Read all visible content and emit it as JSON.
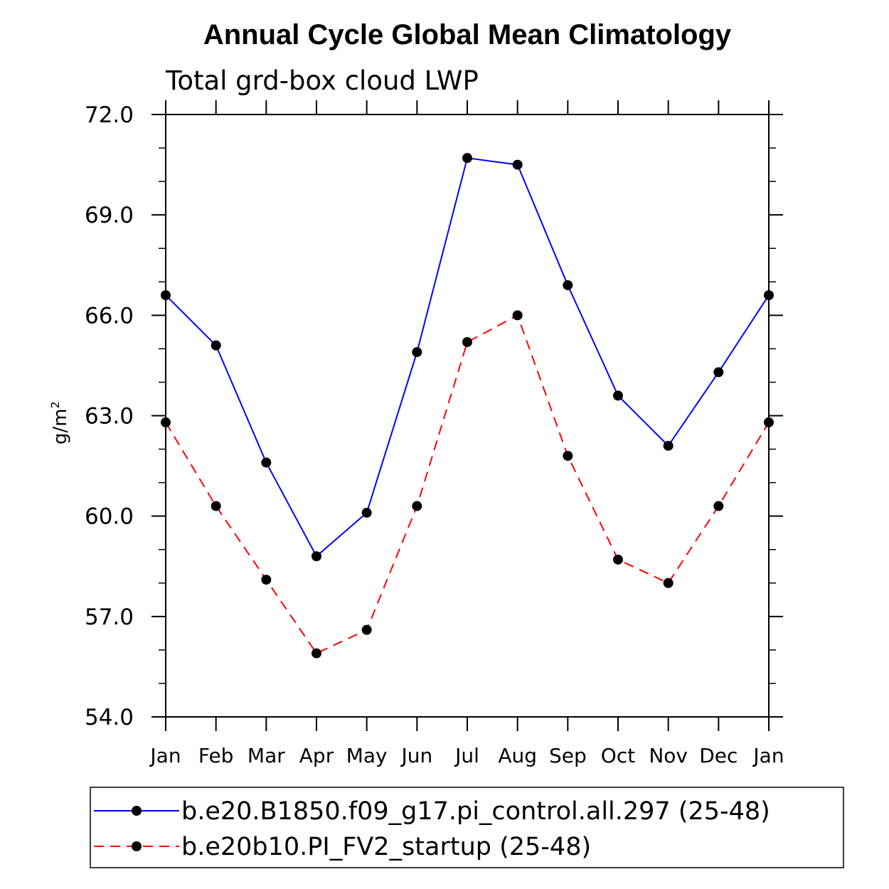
{
  "chart_data": {
    "type": "line",
    "title": "Annual Cycle Global Mean Climatology",
    "subtitle": "Total grd-box cloud LWP",
    "ylabel": "g/m",
    "ylabel_superscript": "2",
    "xlabel": "",
    "categories": [
      "Jan",
      "Feb",
      "Mar",
      "Apr",
      "May",
      "Jun",
      "Jul",
      "Aug",
      "Sep",
      "Oct",
      "Nov",
      "Dec",
      "Jan"
    ],
    "ylim": [
      54.0,
      72.0
    ],
    "yticks": [
      54.0,
      57.0,
      60.0,
      63.0,
      66.0,
      69.0,
      72.0
    ],
    "ytick_labels": [
      "54.0",
      "57.0",
      "60.0",
      "63.0",
      "66.0",
      "69.0",
      "72.0"
    ],
    "y_minor_step": 1.0,
    "legend_position": "bottom",
    "grid": false,
    "series": [
      {
        "name": "b.e20.B1850.f09_g17.pi_control.all.297 (25-48)",
        "color": "#0000ff",
        "style": "solid",
        "values": [
          66.6,
          65.1,
          61.6,
          58.8,
          60.1,
          64.9,
          70.7,
          70.5,
          66.9,
          63.6,
          62.1,
          64.3,
          66.6
        ]
      },
      {
        "name": "b.e20b10.PI_FV2_startup (25-48)",
        "color": "#ff0000",
        "style": "dashed",
        "values": [
          62.8,
          60.3,
          58.1,
          55.9,
          56.6,
          60.3,
          65.2,
          66.0,
          61.8,
          58.7,
          58.0,
          60.3,
          62.8
        ]
      }
    ]
  }
}
